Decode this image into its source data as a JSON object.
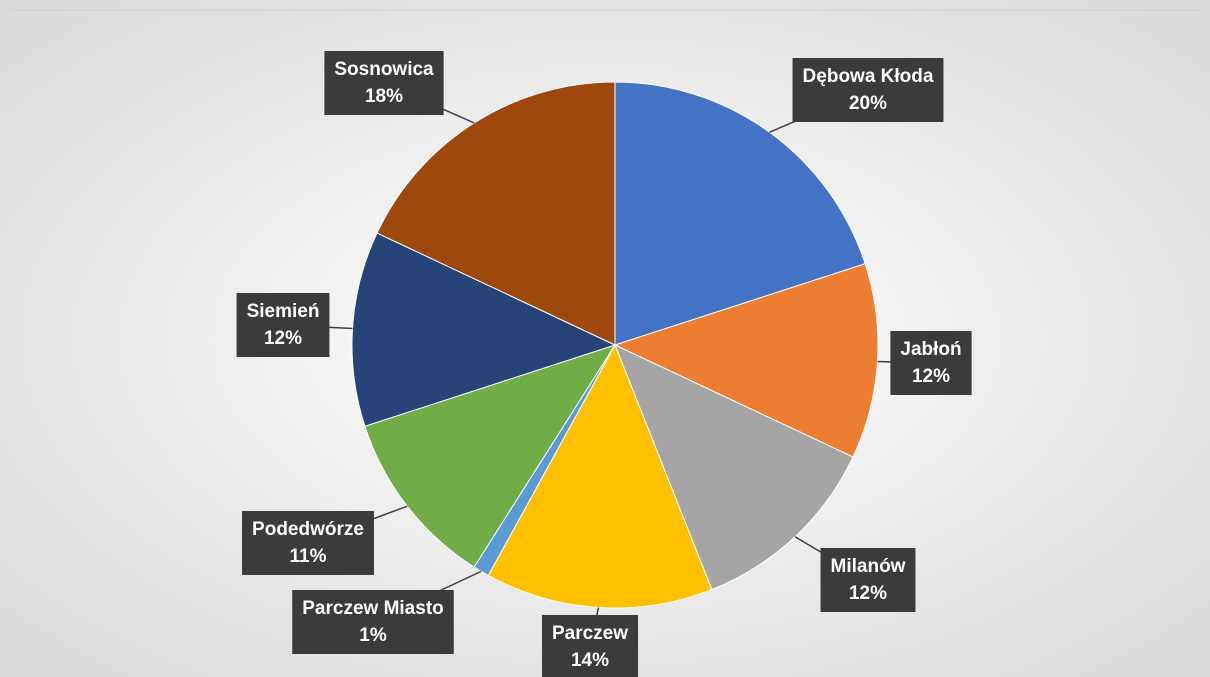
{
  "chart_data": {
    "type": "pie",
    "categories": [
      "Dębowa Kłoda",
      "Jabłoń",
      "Milanów",
      "Parczew",
      "Parczew Miasto",
      "Podedwórze",
      "Siemień",
      "Sosnowica"
    ],
    "values": [
      20,
      12,
      12,
      14,
      1,
      11,
      12,
      18
    ],
    "value_labels": [
      "20%",
      "12%",
      "12%",
      "14%",
      "1%",
      "11%",
      "12%",
      "18%"
    ],
    "colors": [
      "#4472c4",
      "#ed7d31",
      "#a5a5a5",
      "#ffc000",
      "#5b9bd5",
      "#70ad47",
      "#264478",
      "#9e480e"
    ]
  }
}
